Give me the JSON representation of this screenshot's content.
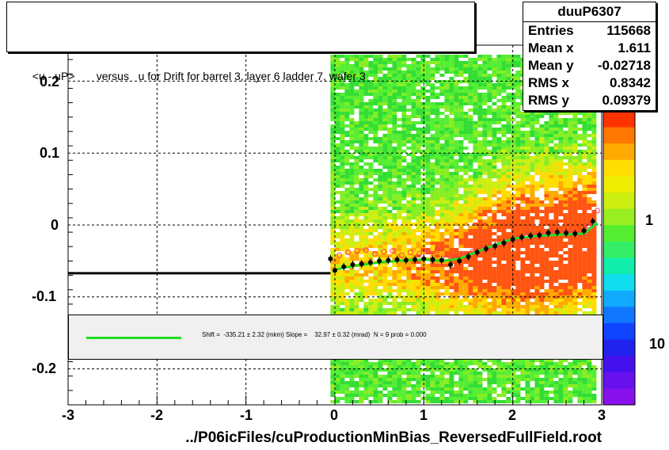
{
  "title": "<u - uP>       versus   u for Drift for barrel 3, layer 6 ladder 7, wafer 3",
  "stats": {
    "name": "duuP6307",
    "rows": [
      {
        "label": "Entries",
        "value": "115668"
      },
      {
        "label": "Mean x",
        "value": "1.611"
      },
      {
        "label": "Mean y",
        "value": "-0.02718"
      },
      {
        "label": "RMS x",
        "value": "0.8342"
      },
      {
        "label": "RMS y",
        "value": "0.09379"
      }
    ]
  },
  "fit_text": "Shift =  -335.21 ± 2.32 (mkm) Slope =    32.97 ± 0.32 (mrad)  N = 9 prob = 0.000",
  "xlabel": "../P06icFiles/cuProductionMinBias_ReversedFullField.root",
  "colors": {
    "fit_line": "#22dd22",
    "profile": "#000000",
    "open_markers": "#ff3366"
  },
  "chart_data": {
    "type": "heatmap",
    "xlim": [
      -3,
      3
    ],
    "ylim": [
      -0.25,
      0.25
    ],
    "x_ticks": [
      "-3",
      "-2",
      "-1",
      "0",
      "1",
      "2",
      "3"
    ],
    "y_ticks": [
      "-0.2",
      "-0.1",
      "0",
      "0.1",
      "0.2"
    ],
    "grid": true,
    "color_scale_labels": [
      "1",
      "10"
    ],
    "profile_black": {
      "x": [
        -0.05,
        0.0,
        0.1,
        0.2,
        0.3,
        0.4,
        0.5,
        0.6,
        0.7,
        0.8,
        0.9,
        1.0,
        1.1,
        1.2,
        1.3,
        1.4,
        1.5,
        1.6,
        1.7,
        1.8,
        1.9,
        2.0,
        2.1,
        2.2,
        2.3,
        2.4,
        2.5,
        2.6,
        2.7,
        2.8,
        2.9
      ],
      "y": [
        -0.047,
        -0.063,
        -0.058,
        -0.055,
        -0.054,
        -0.052,
        -0.05,
        -0.049,
        -0.048,
        -0.049,
        -0.048,
        -0.047,
        -0.048,
        -0.049,
        -0.055,
        -0.05,
        -0.044,
        -0.038,
        -0.033,
        -0.029,
        -0.025,
        -0.02,
        -0.017,
        -0.015,
        -0.014,
        -0.011,
        -0.01,
        -0.011,
        -0.012,
        -0.008,
        0.005
      ]
    },
    "profile_open": {
      "x": [
        0.05,
        0.15,
        0.25,
        0.35,
        0.45,
        0.55,
        0.65,
        0.75,
        0.85,
        0.95,
        1.05,
        1.15,
        1.25,
        1.35,
        1.45,
        1.55,
        1.65,
        1.75,
        1.85,
        1.95,
        2.05,
        2.15,
        2.25,
        2.35,
        2.45,
        2.55,
        2.65,
        2.75,
        2.85,
        2.95
      ],
      "y": [
        -0.042,
        -0.038,
        -0.036,
        -0.035,
        -0.04,
        -0.037,
        -0.036,
        -0.042,
        -0.038,
        -0.04,
        -0.037,
        -0.035,
        -0.046,
        -0.045,
        -0.043,
        -0.037,
        -0.033,
        -0.03,
        -0.026,
        -0.023,
        -0.019,
        -0.016,
        -0.015,
        -0.014,
        -0.012,
        -0.011,
        -0.011,
        -0.012,
        -0.001,
        0.02
      ]
    },
    "flat_line": {
      "x": [
        -3.0,
        -0.05
      ],
      "y": [
        -0.067,
        -0.067
      ]
    },
    "fit_line": {
      "x": [
        0.0,
        0.2,
        0.5,
        0.8,
        1.0,
        1.2,
        1.4,
        1.7,
        2.0,
        2.3,
        2.6,
        2.8,
        2.95
      ],
      "y": [
        -0.062,
        -0.057,
        -0.052,
        -0.049,
        -0.048,
        -0.05,
        -0.047,
        -0.032,
        -0.019,
        -0.015,
        -0.013,
        -0.012,
        0.003
      ]
    }
  }
}
